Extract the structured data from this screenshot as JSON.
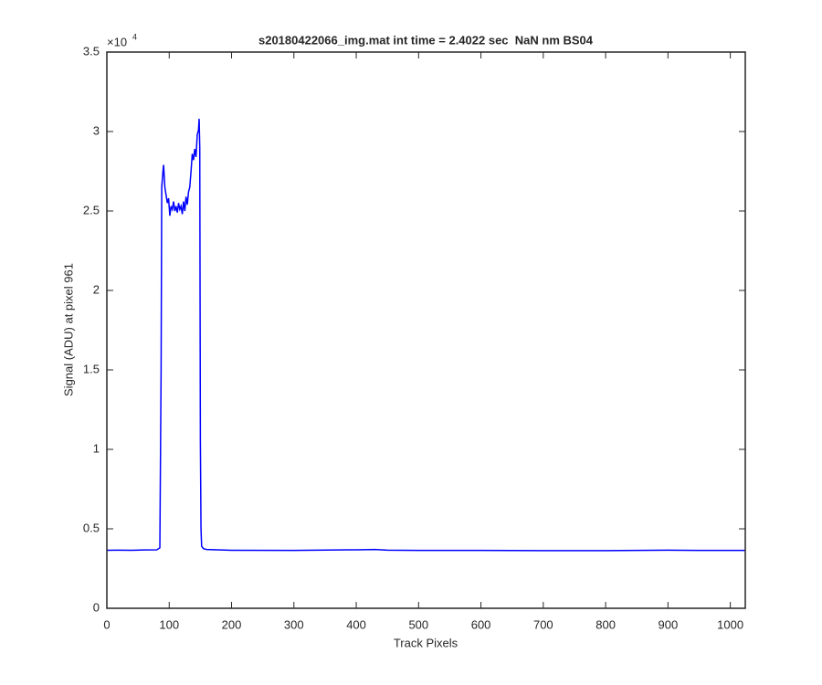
{
  "chart_data": {
    "type": "line",
    "title": "s20180422066_img.mat int time = 2.4022 sec  NaN nm BS04",
    "x_label": "Track Pixels",
    "y_label": "Signal (ADU) at pixel 961",
    "y_multiplier": {
      "base": "×10",
      "exponent": "4"
    },
    "xlim": [
      0,
      1024
    ],
    "ylim": [
      0,
      35000
    ],
    "xticks": [
      0,
      100,
      200,
      300,
      400,
      500,
      600,
      700,
      800,
      900,
      1000
    ],
    "yticks": [
      0,
      {
        "value": 5000,
        "label": "0.5"
      },
      {
        "value": 10000,
        "label": "1"
      },
      {
        "value": 15000,
        "label": "1.5"
      },
      {
        "value": 20000,
        "label": "2"
      },
      {
        "value": 25000,
        "label": "2.5"
      },
      {
        "value": 30000,
        "label": "3"
      },
      {
        "value": 35000,
        "label": "3.5"
      }
    ],
    "grid": false,
    "series": [
      {
        "color": "#0000ff",
        "x": [
          0,
          20,
          40,
          60,
          80,
          85,
          87,
          88,
          90,
          91,
          93,
          95,
          97,
          99,
          101,
          103,
          105,
          107,
          109,
          111,
          113,
          115,
          117,
          119,
          121,
          123,
          125,
          127,
          129,
          131,
          133,
          135,
          137,
          139,
          141,
          143,
          145,
          147,
          148,
          149,
          150,
          151,
          152,
          155,
          160,
          200,
          300,
          400,
          430,
          450,
          500,
          600,
          700,
          800,
          900,
          950,
          1000,
          1024
        ],
        "values": [
          3650,
          3660,
          3650,
          3670,
          3680,
          3800,
          15000,
          26500,
          27500,
          27900,
          26500,
          26000,
          25500,
          25800,
          24700,
          25300,
          25100,
          25600,
          25000,
          25300,
          24900,
          25500,
          25100,
          25300,
          24800,
          25600,
          25000,
          25900,
          25400,
          26200,
          26500,
          27500,
          28600,
          28200,
          28900,
          28400,
          29800,
          30100,
          30800,
          29000,
          10500,
          5000,
          3900,
          3750,
          3700,
          3650,
          3640,
          3680,
          3700,
          3660,
          3640,
          3640,
          3630,
          3630,
          3660,
          3640,
          3640,
          3640
        ]
      }
    ]
  }
}
